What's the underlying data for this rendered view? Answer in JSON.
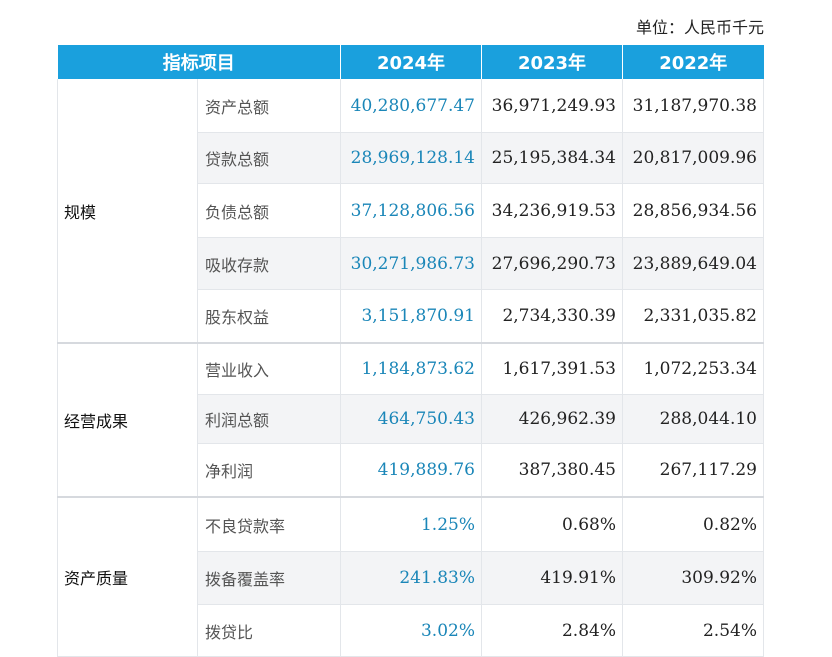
{
  "unit_label": "单位：人民币千元",
  "header": {
    "col_item": "指标项目",
    "col_2024": "2024年",
    "col_2023": "2023年",
    "col_2022": "2022年"
  },
  "groups": [
    {
      "category": "规模",
      "rows": [
        {
          "item": "资产总额",
          "v2024": "40,280,677.47",
          "v2023": "36,971,249.93",
          "v2022": "31,187,970.38"
        },
        {
          "item": "贷款总额",
          "v2024": "28,969,128.14",
          "v2023": "25,195,384.34",
          "v2022": "20,817,009.96"
        },
        {
          "item": "负债总额",
          "v2024": "37,128,806.56",
          "v2023": "34,236,919.53",
          "v2022": "28,856,934.56"
        },
        {
          "item": "吸收存款",
          "v2024": "30,271,986.73",
          "v2023": "27,696,290.73",
          "v2022": "23,889,649.04"
        },
        {
          "item": "股东权益",
          "v2024": "3,151,870.91",
          "v2023": "2,734,330.39",
          "v2022": "2,331,035.82"
        }
      ]
    },
    {
      "category": "经营成果",
      "rows": [
        {
          "item": "营业收入",
          "v2024": "1,184,873.62",
          "v2023": "1,617,391.53",
          "v2022": "1,072,253.34"
        },
        {
          "item": "利润总额",
          "v2024": "464,750.43",
          "v2023": "426,962.39",
          "v2022": "288,044.10"
        },
        {
          "item": "净利润",
          "v2024": "419,889.76",
          "v2023": "387,380.45",
          "v2022": "267,117.29"
        }
      ]
    },
    {
      "category": "资产质量",
      "rows": [
        {
          "item": "不良贷款率",
          "v2024": "1.25%",
          "v2023": "0.68%",
          "v2022": "0.82%"
        },
        {
          "item": "拨备覆盖率",
          "v2024": "241.83%",
          "v2023": "419.91%",
          "v2022": "309.92%"
        },
        {
          "item": "拨贷比",
          "v2024": "3.02%",
          "v2023": "2.84%",
          "v2022": "2.54%"
        }
      ]
    }
  ]
}
